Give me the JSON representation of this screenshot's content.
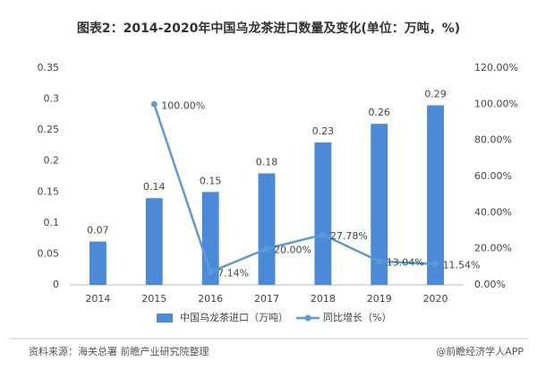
{
  "chart_data": {
    "type": "bar-line",
    "title": "图表2：2014-2020年中国乌龙茶进口数量及变化(单位：万吨，%)",
    "categories": [
      "2014",
      "2015",
      "2016",
      "2017",
      "2018",
      "2019",
      "2020"
    ],
    "series": [
      {
        "name": "中国乌龙茶进口（万吨）",
        "color": "#4a8ad8",
        "type": "bar",
        "axis": "y",
        "values": [
          0.07,
          0.14,
          0.15,
          0.18,
          0.23,
          0.26,
          0.29
        ]
      },
      {
        "name": "同比增长（%）",
        "color": "#5b9bd5",
        "type": "line",
        "axis": "y2",
        "values": [
          null,
          100,
          7.14,
          20.0,
          27.78,
          13.04,
          11.54
        ],
        "value_labels": [
          null,
          "100.00%",
          "7.14%",
          "20.00%",
          "27.78%",
          "13.04%",
          "11.54%"
        ]
      }
    ],
    "ylim": [
      0,
      0.35
    ],
    "yticks": [
      0,
      0.05,
      0.1,
      0.15,
      0.2,
      0.25,
      0.3,
      0.35
    ],
    "y2lim": [
      0,
      120
    ],
    "y2ticks": [
      {
        "value": 0,
        "label": "0.00%"
      },
      {
        "value": 20,
        "label": "20.00%"
      },
      {
        "value": 40,
        "label": "40.00%"
      },
      {
        "value": 60,
        "label": "60.00%"
      },
      {
        "value": 80,
        "label": "80.00%"
      },
      {
        "value": 100,
        "label": "100.00%"
      },
      {
        "value": 120,
        "label": "120.00%"
      }
    ],
    "legend": "bottom",
    "source": "资料来源：海关总署 前瞻产业研究院整理",
    "credit": "@前瞻经济学人APP"
  }
}
